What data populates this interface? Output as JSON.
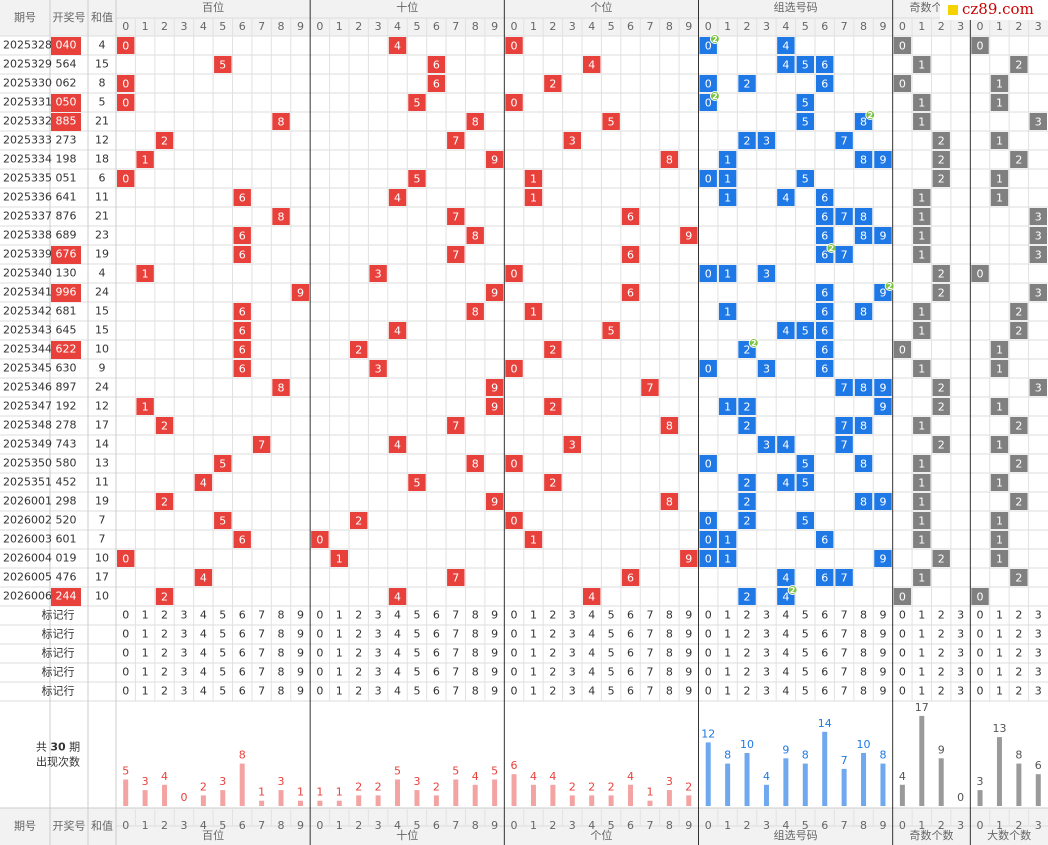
{
  "header": {
    "issue": "期号",
    "number": "开奖号",
    "sum": "和值",
    "groups": [
      "百位",
      "十位",
      "个位",
      "组选号码",
      "奇数个数",
      "大数个数"
    ],
    "digits": [
      "0",
      "1",
      "2",
      "3",
      "4",
      "5",
      "6",
      "7",
      "8",
      "9"
    ],
    "logo": "cz89.com"
  },
  "draws": [
    {
      "issue": "2025328",
      "number": "040",
      "sum": 4
    },
    {
      "issue": "2025329",
      "number": "564",
      "sum": 15
    },
    {
      "issue": "2025330",
      "number": "062",
      "sum": 8
    },
    {
      "issue": "2025331",
      "number": "050",
      "sum": 5
    },
    {
      "issue": "2025332",
      "number": "885",
      "sum": 21
    },
    {
      "issue": "2025333",
      "number": "273",
      "sum": 12
    },
    {
      "issue": "2025334",
      "number": "198",
      "sum": 18
    },
    {
      "issue": "2025335",
      "number": "051",
      "sum": 6
    },
    {
      "issue": "2025336",
      "number": "641",
      "sum": 11
    },
    {
      "issue": "2025337",
      "number": "876",
      "sum": 21
    },
    {
      "issue": "2025338",
      "number": "689",
      "sum": 23
    },
    {
      "issue": "2025339",
      "number": "676",
      "sum": 19
    },
    {
      "issue": "2025340",
      "number": "130",
      "sum": 4
    },
    {
      "issue": "2025341",
      "number": "996",
      "sum": 24
    },
    {
      "issue": "2025342",
      "number": "681",
      "sum": 15
    },
    {
      "issue": "2025343",
      "number": "645",
      "sum": 15
    },
    {
      "issue": "2025344",
      "number": "622",
      "sum": 10
    },
    {
      "issue": "2025345",
      "number": "630",
      "sum": 9
    },
    {
      "issue": "2025346",
      "number": "897",
      "sum": 24
    },
    {
      "issue": "2025347",
      "number": "192",
      "sum": 12
    },
    {
      "issue": "2025348",
      "number": "278",
      "sum": 17
    },
    {
      "issue": "2025349",
      "number": "743",
      "sum": 14
    },
    {
      "issue": "2025350",
      "number": "580",
      "sum": 13
    },
    {
      "issue": "2025351",
      "number": "452",
      "sum": 11
    },
    {
      "issue": "2026001",
      "number": "298",
      "sum": 19
    },
    {
      "issue": "2026002",
      "number": "520",
      "sum": 7
    },
    {
      "issue": "2026003",
      "number": "601",
      "sum": 7
    },
    {
      "issue": "2026004",
      "number": "019",
      "sum": 10
    },
    {
      "issue": "2026005",
      "number": "476",
      "sum": 17
    },
    {
      "issue": "2026006",
      "number": "244",
      "sum": 10
    }
  ],
  "repeat_badge": "2",
  "marker_label": "标记行",
  "stats": {
    "prefix": "共",
    "periods": 30,
    "suffix": "期",
    "caption": "出现次数",
    "groups": [
      [
        5,
        3,
        4,
        0,
        2,
        3,
        8,
        1,
        3,
        1
      ],
      [
        1,
        1,
        2,
        2,
        5,
        3,
        2,
        5,
        4,
        5
      ],
      [
        6,
        4,
        4,
        2,
        2,
        2,
        4,
        1,
        3,
        2
      ],
      [
        12,
        8,
        10,
        4,
        9,
        8,
        14,
        7,
        10,
        8
      ],
      [
        4,
        17,
        9,
        0
      ],
      [
        3,
        13,
        8,
        6
      ]
    ]
  }
}
